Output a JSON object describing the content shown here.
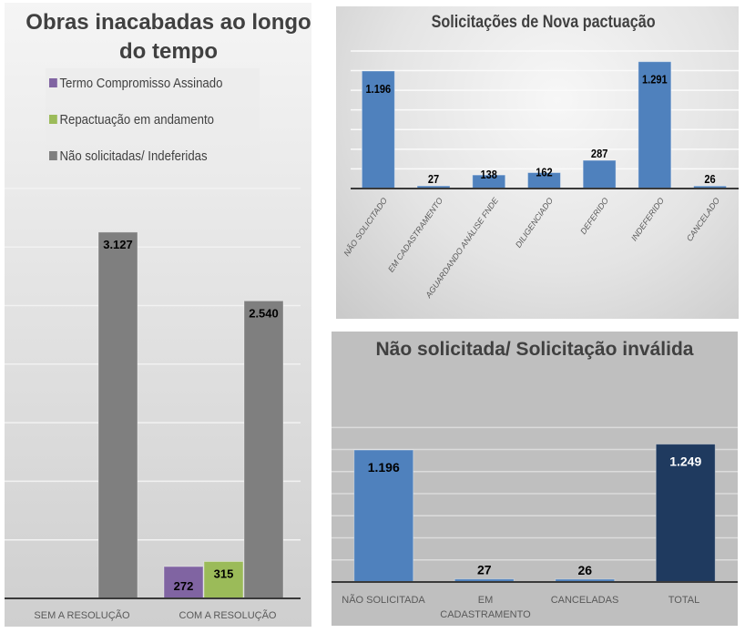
{
  "chart_data": [
    {
      "type": "bar",
      "title": "Obras inacabadas ao longo do tempo",
      "categories": [
        "SEM A RESOLUÇÃO",
        "COM A RESOLUÇÃO"
      ],
      "series": [
        {
          "name": "Termo Compromisso Assinado",
          "color": "#8064a2",
          "values": [
            null,
            272
          ],
          "labels": [
            "",
            "272"
          ]
        },
        {
          "name": "Repactuação em andamento",
          "color": "#9bbb59",
          "values": [
            null,
            315
          ],
          "labels": [
            "",
            "315"
          ]
        },
        {
          "name": "Não solicitadas/ Indeferidas",
          "color": "#7f7f7f",
          "values": [
            3127,
            2540
          ],
          "labels": [
            "3.127",
            "2.540"
          ]
        }
      ],
      "xlabel": "",
      "ylabel": "",
      "ylim": [
        0,
        3500
      ],
      "grid_step": 500,
      "grid": true,
      "legend_position": "top-left"
    },
    {
      "type": "bar",
      "title": "Solicitações de Nova pactuação",
      "categories": [
        "NÃO SOLICITADO",
        "EM CADASTRAMENTO",
        "AGUARDANDO ANÁLISE FNDE",
        "DILIGENCIADO",
        "DEFERIDO",
        "INDEFERIDO",
        "CANCELADO"
      ],
      "values": [
        1196,
        27,
        138,
        162,
        287,
        1291,
        26
      ],
      "labels": [
        "1.196",
        "27",
        "138",
        "162",
        "287",
        "1.291",
        "26"
      ],
      "color": "#4f81bd",
      "xlabel": "",
      "ylabel": "",
      "ylim": [
        0,
        1400
      ],
      "grid_step": 200,
      "grid": true
    },
    {
      "type": "bar",
      "title": "Não solicitada/ Solicitação inválida",
      "categories": [
        "NÃO SOLICITADA",
        "EM CADASTRAMENTO",
        "CANCELADAS",
        "TOTAL"
      ],
      "values": [
        1196,
        27,
        26,
        1249
      ],
      "labels": [
        "1.196",
        "27",
        "26",
        "1.249"
      ],
      "colors": [
        "#4f81bd",
        "#4f81bd",
        "#4f81bd",
        "#1f3a5f"
      ],
      "label_colors": [
        "#000000",
        "#000000",
        "#000000",
        "#ffffff"
      ],
      "xlabel": "",
      "ylabel": "",
      "ylim": [
        0,
        1400
      ],
      "grid_step": 200,
      "grid": true
    }
  ],
  "left": {
    "title": "Obras inacabadas ao longo do tempo",
    "legend": [
      {
        "label": "Termo Compromisso Assinado",
        "color": "#8064a2"
      },
      {
        "label": "Repactuação em andamento",
        "color": "#9bbb59"
      },
      {
        "label": "Não solicitadas/ Indeferidas",
        "color": "#7f7f7f"
      }
    ],
    "categories": [
      "SEM A RESOLUÇÃO",
      "COM A RESOLUÇÃO"
    ]
  },
  "top_right": {
    "title": "Solicitações de Nova pactuação",
    "categories": [
      "NÃO SOLICITADO",
      "EM CADASTRAMENTO",
      "AGUARDANDO ANÁLISE FNDE",
      "DILIGENCIADO",
      "DEFERIDO",
      "INDEFERIDO",
      "CANCELADO"
    ]
  },
  "bottom_right": {
    "title": "Não solicitada/ Solicitação inválida",
    "categories": [
      "NÃO SOLICITADA",
      "EM CADASTRAMENTO",
      "CANCELADAS",
      "TOTAL"
    ]
  }
}
